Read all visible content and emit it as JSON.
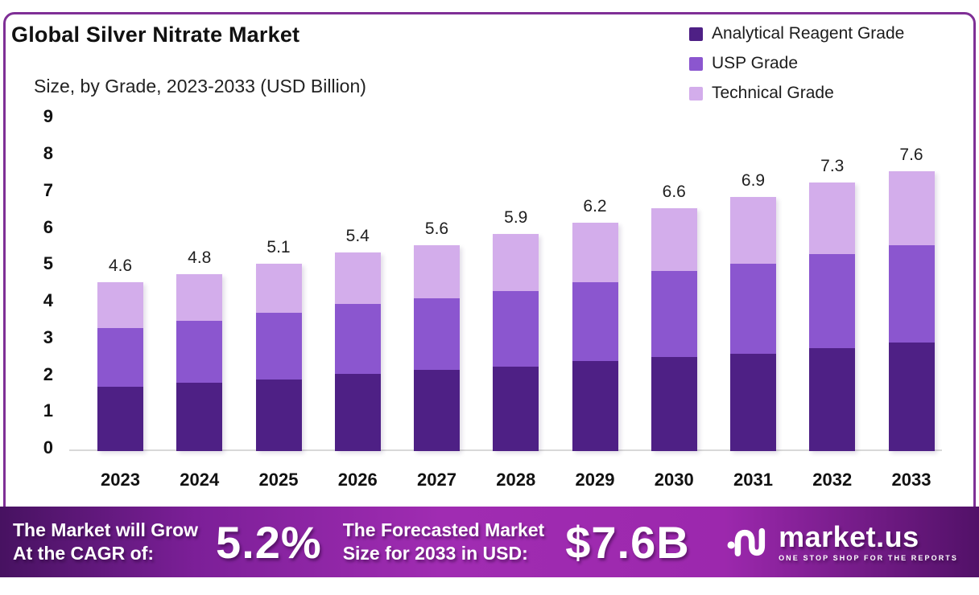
{
  "chart_data": {
    "type": "bar",
    "stacked": true,
    "title": "Global Silver Nitrate Market",
    "subtitle": "Size, by Grade, 2023-2033 (USD Billion)",
    "categories": [
      "2023",
      "2024",
      "2025",
      "2026",
      "2027",
      "2028",
      "2029",
      "2030",
      "2031",
      "2032",
      "2033"
    ],
    "series": [
      {
        "name": "Analytical Reagent Grade",
        "color": "#4e2085",
        "values": [
          1.75,
          1.85,
          1.95,
          2.1,
          2.2,
          2.3,
          2.45,
          2.55,
          2.65,
          2.8,
          2.95
        ]
      },
      {
        "name": "USP Grade",
        "color": "#8b56cf",
        "values": [
          1.6,
          1.7,
          1.8,
          1.9,
          1.95,
          2.05,
          2.15,
          2.35,
          2.45,
          2.55,
          2.65
        ]
      },
      {
        "name": "Technical Grade",
        "color": "#d3adeb",
        "values": [
          1.25,
          1.25,
          1.35,
          1.4,
          1.45,
          1.55,
          1.6,
          1.7,
          1.8,
          1.95,
          2.0
        ]
      }
    ],
    "totals": [
      4.6,
      4.8,
      5.1,
      5.4,
      5.6,
      5.9,
      6.2,
      6.6,
      6.9,
      7.3,
      7.6
    ],
    "ylim": [
      0,
      9
    ],
    "yticks": [
      0,
      1,
      2,
      3,
      4,
      5,
      6,
      7,
      8,
      9
    ],
    "legend_position": "top-right",
    "grid": false
  },
  "banner": {
    "left_line1": "The Market will Grow",
    "left_line2": "At the CAGR of:",
    "cagr_value": "5.2%",
    "mid_line1": "The Forecasted Market",
    "mid_line2": "Size for 2033 in USD:",
    "forecast_value": "$7.6B",
    "brand": "market.us",
    "tagline": "ONE STOP SHOP FOR THE REPORTS"
  },
  "colors": {
    "card_border": "#7f2f96",
    "axis_line": "#d8d8d8",
    "banner_left": "#471261",
    "banner_mid": "#a02cb2",
    "banner_right": "#521168",
    "text": "#111111"
  }
}
